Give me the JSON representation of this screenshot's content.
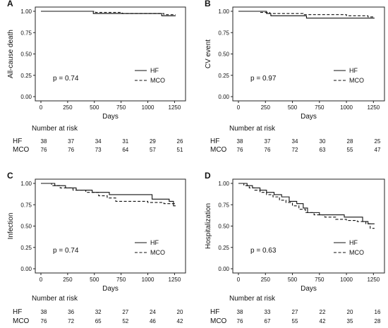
{
  "chart_data": [
    {
      "type": "line",
      "panel_label": "A",
      "ylabel": "All-cause death",
      "xlabel": "Days",
      "xlim": [
        0,
        1300
      ],
      "ylim": [
        0,
        1.0
      ],
      "x_ticks": [
        "0",
        "250",
        "500",
        "750",
        "1000",
        "1250"
      ],
      "y_ticks": [
        "0.00",
        "0.25",
        "0.50",
        "0.75",
        "1.00"
      ],
      "p_value": "p = 0.74",
      "legend_position": "right",
      "series": [
        {
          "name": "HF",
          "line_style": "solid",
          "x": [
            0,
            490,
            1130,
            1260
          ],
          "y": [
            1.0,
            0.974,
            0.947,
            0.947
          ]
        },
        {
          "name": "MCO",
          "line_style": "dashed",
          "x": [
            0,
            510,
            760,
            1150,
            1260
          ],
          "y": [
            1.0,
            0.987,
            0.974,
            0.961,
            0.961
          ]
        }
      ],
      "risk_table": {
        "title": "Number at risk",
        "groups": [
          "HF",
          "MCO"
        ],
        "time_points": [
          0,
          250,
          500,
          750,
          1000,
          1250
        ],
        "values": [
          [
            "38",
            "37",
            "34",
            "31",
            "29",
            "26"
          ],
          [
            "76",
            "76",
            "73",
            "64",
            "57",
            "51"
          ]
        ]
      }
    },
    {
      "type": "line",
      "panel_label": "B",
      "ylabel": "CV event",
      "xlabel": "Days",
      "xlim": [
        0,
        1300
      ],
      "ylim": [
        0,
        1.0
      ],
      "x_ticks": [
        "0",
        "250",
        "500",
        "750",
        "1000",
        "1250"
      ],
      "y_ticks": [
        "0.00",
        "0.25",
        "0.50",
        "0.75",
        "1.00"
      ],
      "p_value": "p = 0.97",
      "legend_position": "right",
      "series": [
        {
          "name": "HF",
          "line_style": "solid",
          "x": [
            0,
            260,
            300,
            630,
            1260
          ],
          "y": [
            1.0,
            0.974,
            0.947,
            0.92,
            0.92
          ]
        },
        {
          "name": "MCO",
          "line_style": "dashed",
          "x": [
            0,
            200,
            290,
            600,
            1000,
            1200,
            1260
          ],
          "y": [
            1.0,
            0.987,
            0.974,
            0.961,
            0.947,
            0.934,
            0.934
          ]
        }
      ],
      "risk_table": {
        "title": "Number at risk",
        "groups": [
          "HF",
          "MCO"
        ],
        "time_points": [
          0,
          250,
          500,
          750,
          1000,
          1250
        ],
        "values": [
          [
            "38",
            "37",
            "34",
            "30",
            "28",
            "25"
          ],
          [
            "76",
            "76",
            "72",
            "63",
            "55",
            "47"
          ]
        ]
      }
    },
    {
      "type": "line",
      "panel_label": "C",
      "ylabel": "Infection",
      "xlabel": "Days",
      "xlim": [
        0,
        1300
      ],
      "ylim": [
        0,
        1.0
      ],
      "x_ticks": [
        "0",
        "250",
        "500",
        "750",
        "1000",
        "1250"
      ],
      "y_ticks": [
        "0.00",
        "0.25",
        "0.50",
        "0.75",
        "1.00"
      ],
      "p_value": "p = 0.74",
      "legend_position": "right",
      "series": [
        {
          "name": "HF",
          "line_style": "solid",
          "x": [
            0,
            130,
            230,
            330,
            480,
            640,
            1040,
            1200,
            1240,
            1260
          ],
          "y": [
            1.0,
            0.974,
            0.947,
            0.921,
            0.895,
            0.868,
            0.816,
            0.79,
            0.737,
            0.737
          ]
        },
        {
          "name": "MCO",
          "line_style": "dashed",
          "x": [
            0,
            100,
            180,
            300,
            420,
            540,
            620,
            700,
            1000,
            1150,
            1260
          ],
          "y": [
            1.0,
            0.974,
            0.947,
            0.921,
            0.895,
            0.855,
            0.829,
            0.79,
            0.776,
            0.763,
            0.763
          ]
        }
      ],
      "risk_table": {
        "title": "Number at risk",
        "groups": [
          "HF",
          "MCO"
        ],
        "time_points": [
          0,
          250,
          500,
          750,
          1000,
          1250
        ],
        "values": [
          [
            "38",
            "36",
            "32",
            "27",
            "24",
            "20"
          ],
          [
            "76",
            "72",
            "65",
            "52",
            "46",
            "42"
          ]
        ]
      }
    },
    {
      "type": "line",
      "panel_label": "D",
      "ylabel": "Hospitalization",
      "xlabel": "Days",
      "xlim": [
        0,
        1300
      ],
      "ylim": [
        0,
        1.0
      ],
      "x_ticks": [
        "0",
        "250",
        "500",
        "750",
        "1000",
        "1250"
      ],
      "y_ticks": [
        "0.00",
        "0.25",
        "0.50",
        "0.75",
        "1.00"
      ],
      "p_value": "p = 0.63",
      "legend_position": "right",
      "series": [
        {
          "name": "HF",
          "line_style": "solid",
          "x": [
            0,
            80,
            130,
            200,
            260,
            330,
            400,
            470,
            540,
            600,
            640,
            750,
            980,
            1150,
            1200,
            1260
          ],
          "y": [
            1.0,
            0.974,
            0.947,
            0.921,
            0.895,
            0.868,
            0.842,
            0.79,
            0.763,
            0.711,
            0.658,
            0.632,
            0.605,
            0.553,
            0.526,
            0.526
          ]
        },
        {
          "name": "MCO",
          "line_style": "dashed",
          "x": [
            0,
            50,
            100,
            150,
            200,
            260,
            320,
            380,
            440,
            500,
            560,
            620,
            700,
            800,
            900,
            1000,
            1100,
            1180,
            1220,
            1260
          ],
          "y": [
            1.0,
            0.974,
            0.947,
            0.921,
            0.895,
            0.868,
            0.842,
            0.803,
            0.776,
            0.737,
            0.697,
            0.658,
            0.632,
            0.605,
            0.579,
            0.566,
            0.553,
            0.526,
            0.474,
            0.474
          ]
        }
      ],
      "risk_table": {
        "title": "Number at risk",
        "groups": [
          "HF",
          "MCO"
        ],
        "time_points": [
          0,
          250,
          500,
          750,
          1000,
          1250
        ],
        "values": [
          [
            "38",
            "33",
            "27",
            "22",
            "20",
            "16"
          ],
          [
            "76",
            "67",
            "55",
            "42",
            "35",
            "28"
          ]
        ]
      }
    }
  ]
}
